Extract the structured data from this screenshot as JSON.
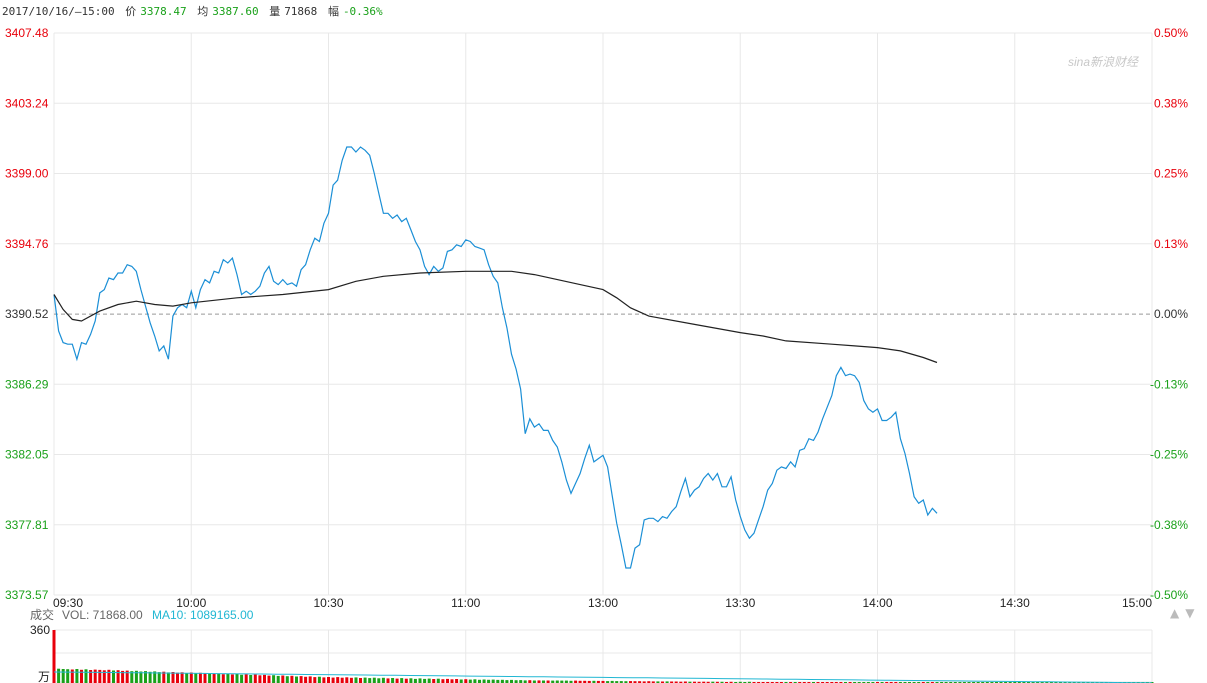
{
  "header": {
    "datetime": "2017/10/16/—15:00",
    "price_label": "价",
    "price": "3378.47",
    "avg_label": "均",
    "avg": "3387.60",
    "vol_label": "量",
    "vol": "71868",
    "chg_label": "幅",
    "chg": "-0.36%"
  },
  "watermark": "sina新浪财经",
  "nav": {
    "up": "▲",
    "down": "▼"
  },
  "volume_header": {
    "title": "成交",
    "vol_text": "VOL: 71868.00",
    "ma_text": "MA10: 1089165.00",
    "max_tick": "360",
    "unit": "万"
  },
  "colors": {
    "up": "#e8000b",
    "down": "#1aa11a",
    "price_line": "#1b8fd6",
    "avg_line": "#222222",
    "ma_line": "#21b7d3",
    "grid": "#e8e8e8",
    "baseline": "#999999"
  },
  "chart_data": {
    "type": "line",
    "price_ticks": [
      "3407.48",
      "3403.24",
      "3399.00",
      "3394.76",
      "3390.52",
      "3386.29",
      "3382.05",
      "3377.81",
      "3373.57"
    ],
    "pct_ticks": [
      "0.50%",
      "0.38%",
      "0.25%",
      "0.13%",
      "0.00%",
      "-0.13%",
      "-0.25%",
      "-0.38%",
      "-0.50%"
    ],
    "time_ticks": [
      "09:30",
      "10:00",
      "10:30",
      "11:00",
      "13:00",
      "13:30",
      "14:00",
      "14:30",
      "15:00"
    ],
    "ylim": [
      3373.57,
      3407.48
    ],
    "prev_close": 3390.52,
    "x_minutes": [
      0,
      240
    ],
    "series": [
      {
        "key": "price",
        "points": [
          [
            0,
            3391.7
          ],
          [
            1,
            3389.5
          ],
          [
            2,
            3388.8
          ],
          [
            3,
            3388.7
          ],
          [
            4,
            3388.7
          ],
          [
            5,
            3387.8
          ],
          [
            6,
            3388.8
          ],
          [
            7,
            3388.7
          ],
          [
            8,
            3389.3
          ],
          [
            9,
            3390.1
          ],
          [
            10,
            3391.8
          ],
          [
            11,
            3392.0
          ],
          [
            12,
            3392.7
          ],
          [
            13,
            3392.6
          ],
          [
            14,
            3393.0
          ],
          [
            15,
            3393.0
          ],
          [
            16,
            3393.5
          ],
          [
            17,
            3393.4
          ],
          [
            18,
            3393.1
          ],
          [
            19,
            3392.0
          ],
          [
            20,
            3391.0
          ],
          [
            21,
            3390.0
          ],
          [
            22,
            3389.2
          ],
          [
            23,
            3388.3
          ],
          [
            24,
            3388.6
          ],
          [
            25,
            3387.8
          ],
          [
            26,
            3390.4
          ],
          [
            27,
            3390.9
          ],
          [
            28,
            3391.1
          ],
          [
            29,
            3390.9
          ],
          [
            30,
            3391.9
          ],
          [
            31,
            3390.9
          ],
          [
            32,
            3392.0
          ],
          [
            33,
            3392.6
          ],
          [
            34,
            3392.4
          ],
          [
            35,
            3393.1
          ],
          [
            36,
            3393.0
          ],
          [
            37,
            3393.8
          ],
          [
            38,
            3393.6
          ],
          [
            39,
            3393.9
          ],
          [
            40,
            3392.9
          ],
          [
            41,
            3391.7
          ],
          [
            42,
            3391.9
          ],
          [
            43,
            3391.7
          ],
          [
            44,
            3391.9
          ],
          [
            45,
            3392.2
          ],
          [
            46,
            3393.0
          ],
          [
            47,
            3393.4
          ],
          [
            48,
            3392.5
          ],
          [
            49,
            3392.3
          ],
          [
            50,
            3392.6
          ],
          [
            51,
            3392.3
          ],
          [
            52,
            3392.4
          ],
          [
            53,
            3392.2
          ],
          [
            54,
            3393.2
          ],
          [
            55,
            3393.5
          ],
          [
            56,
            3394.4
          ],
          [
            57,
            3395.1
          ],
          [
            58,
            3394.9
          ],
          [
            59,
            3396.0
          ],
          [
            60,
            3396.6
          ],
          [
            61,
            3398.3
          ],
          [
            62,
            3398.6
          ],
          [
            63,
            3399.8
          ],
          [
            64,
            3400.6
          ],
          [
            65,
            3400.6
          ],
          [
            66,
            3400.3
          ],
          [
            67,
            3400.6
          ],
          [
            68,
            3400.4
          ],
          [
            69,
            3400.1
          ],
          [
            70,
            3399.0
          ],
          [
            71,
            3397.8
          ],
          [
            72,
            3396.6
          ],
          [
            73,
            3396.6
          ],
          [
            74,
            3396.3
          ],
          [
            75,
            3396.5
          ],
          [
            76,
            3396.1
          ],
          [
            77,
            3396.3
          ],
          [
            78,
            3395.6
          ],
          [
            79,
            3394.9
          ],
          [
            80,
            3394.4
          ],
          [
            81,
            3393.4
          ],
          [
            82,
            3392.9
          ],
          [
            83,
            3393.4
          ],
          [
            84,
            3393.1
          ],
          [
            85,
            3393.3
          ],
          [
            86,
            3394.3
          ],
          [
            87,
            3394.4
          ],
          [
            88,
            3394.7
          ],
          [
            89,
            3394.6
          ],
          [
            90,
            3395.0
          ],
          [
            91,
            3394.9
          ],
          [
            92,
            3394.6
          ],
          [
            93,
            3394.5
          ],
          [
            94,
            3394.4
          ],
          [
            95,
            3393.5
          ],
          [
            96,
            3392.8
          ],
          [
            97,
            3392.4
          ],
          [
            98,
            3390.9
          ],
          [
            99,
            3389.7
          ],
          [
            100,
            3388.1
          ],
          [
            101,
            3387.2
          ],
          [
            102,
            3386.0
          ],
          [
            103,
            3383.3
          ],
          [
            104,
            3384.2
          ],
          [
            105,
            3383.7
          ],
          [
            106,
            3383.9
          ],
          [
            107,
            3383.5
          ],
          [
            108,
            3383.5
          ],
          [
            109,
            3382.9
          ],
          [
            110,
            3382.5
          ],
          [
            111,
            3381.6
          ],
          [
            112,
            3380.5
          ],
          [
            113,
            3379.7
          ],
          [
            114,
            3380.3
          ],
          [
            115,
            3380.9
          ],
          [
            116,
            3381.8
          ],
          [
            117,
            3382.6
          ],
          [
            118,
            3381.6
          ],
          [
            119,
            3381.8
          ],
          [
            120,
            3382.0
          ],
          [
            121,
            3381.3
          ],
          [
            122,
            3379.6
          ],
          [
            123,
            3377.9
          ],
          [
            124,
            3376.6
          ],
          [
            125,
            3375.2
          ],
          [
            126,
            3375.2
          ],
          [
            127,
            3376.4
          ],
          [
            128,
            3376.6
          ],
          [
            129,
            3378.1
          ],
          [
            130,
            3378.2
          ],
          [
            131,
            3378.2
          ],
          [
            132,
            3378.0
          ],
          [
            133,
            3378.3
          ],
          [
            134,
            3378.2
          ],
          [
            135,
            3378.6
          ],
          [
            136,
            3378.9
          ],
          [
            137,
            3379.8
          ],
          [
            138,
            3380.6
          ],
          [
            139,
            3379.5
          ],
          [
            140,
            3379.9
          ],
          [
            141,
            3380.1
          ],
          [
            142,
            3380.6
          ],
          [
            143,
            3380.9
          ],
          [
            144,
            3380.5
          ],
          [
            145,
            3380.9
          ],
          [
            146,
            3380.1
          ],
          [
            147,
            3380.1
          ],
          [
            148,
            3380.7
          ],
          [
            149,
            3379.3
          ],
          [
            150,
            3378.3
          ],
          [
            151,
            3377.5
          ],
          [
            152,
            3377.0
          ],
          [
            153,
            3377.3
          ],
          [
            154,
            3378.1
          ],
          [
            155,
            3378.9
          ],
          [
            156,
            3379.9
          ],
          [
            157,
            3380.3
          ],
          [
            158,
            3381.1
          ],
          [
            159,
            3381.3
          ],
          [
            160,
            3381.2
          ],
          [
            161,
            3381.6
          ],
          [
            162,
            3381.3
          ],
          [
            163,
            3382.3
          ],
          [
            164,
            3382.4
          ],
          [
            165,
            3383.0
          ],
          [
            166,
            3382.9
          ],
          [
            167,
            3383.4
          ],
          [
            168,
            3384.2
          ],
          [
            169,
            3384.9
          ],
          [
            170,
            3385.6
          ],
          [
            171,
            3386.8
          ],
          [
            172,
            3387.3
          ],
          [
            173,
            3386.8
          ],
          [
            174,
            3386.9
          ],
          [
            175,
            3386.8
          ],
          [
            176,
            3386.4
          ],
          [
            177,
            3385.3
          ],
          [
            178,
            3384.8
          ],
          [
            179,
            3384.6
          ],
          [
            180,
            3384.8
          ],
          [
            181,
            3384.1
          ],
          [
            182,
            3384.1
          ],
          [
            183,
            3384.3
          ],
          [
            184,
            3384.6
          ],
          [
            185,
            3383.0
          ],
          [
            186,
            3382.1
          ],
          [
            187,
            3380.9
          ],
          [
            188,
            3379.5
          ],
          [
            189,
            3379.1
          ],
          [
            190,
            3379.3
          ],
          [
            191,
            3378.4
          ],
          [
            192,
            3378.8
          ],
          [
            193,
            3378.5
          ]
        ]
      },
      {
        "key": "avg",
        "points": [
          [
            0,
            3391.7
          ],
          [
            2,
            3390.8
          ],
          [
            4,
            3390.2
          ],
          [
            6,
            3390.1
          ],
          [
            10,
            3390.7
          ],
          [
            14,
            3391.1
          ],
          [
            18,
            3391.3
          ],
          [
            22,
            3391.1
          ],
          [
            26,
            3391.0
          ],
          [
            30,
            3391.2
          ],
          [
            40,
            3391.5
          ],
          [
            50,
            3391.7
          ],
          [
            60,
            3392.0
          ],
          [
            66,
            3392.5
          ],
          [
            72,
            3392.8
          ],
          [
            80,
            3393.0
          ],
          [
            90,
            3393.1
          ],
          [
            100,
            3393.1
          ],
          [
            105,
            3392.9
          ],
          [
            110,
            3392.6
          ],
          [
            115,
            3392.3
          ],
          [
            120,
            3392.0
          ],
          [
            123,
            3391.5
          ],
          [
            126,
            3390.9
          ],
          [
            130,
            3390.4
          ],
          [
            140,
            3389.9
          ],
          [
            150,
            3389.4
          ],
          [
            155,
            3389.2
          ],
          [
            160,
            3388.9
          ],
          [
            170,
            3388.7
          ],
          [
            175,
            3388.6
          ],
          [
            180,
            3388.5
          ],
          [
            185,
            3388.3
          ],
          [
            190,
            3387.9
          ],
          [
            193,
            3387.6
          ]
        ]
      }
    ],
    "volume": {
      "max": 360,
      "bars": [
        360,
        97,
        95,
        94,
        92,
        95,
        90,
        93,
        88,
        91,
        89,
        86,
        90,
        85,
        87,
        82,
        84,
        80,
        83,
        78,
        81,
        76,
        79,
        74,
        77,
        72,
        75,
        70,
        73,
        68,
        71,
        66,
        69,
        64,
        67,
        62,
        65,
        60,
        63,
        58,
        61,
        56,
        59,
        54,
        57,
        52,
        55,
        50,
        53,
        48,
        51,
        46,
        49,
        44,
        47,
        42,
        45,
        40,
        43,
        38,
        41,
        37,
        40,
        36,
        39,
        35,
        38,
        34,
        37,
        33,
        36,
        32,
        35,
        31,
        34,
        30,
        33,
        29,
        32,
        28,
        31,
        28,
        30,
        27,
        29,
        26,
        28,
        25,
        27,
        24,
        26,
        23,
        25,
        22,
        24,
        22,
        23,
        21,
        22,
        20,
        21,
        19,
        20,
        18,
        19,
        17,
        18,
        17,
        17,
        16,
        17,
        16,
        16,
        15,
        16,
        15,
        15,
        14,
        15,
        14,
        14,
        13,
        14,
        13,
        13,
        12,
        13,
        12,
        12,
        11,
        12,
        11,
        11,
        10,
        11,
        10,
        10,
        9,
        10,
        9,
        9,
        8,
        9,
        8,
        9,
        8,
        8,
        7,
        8,
        7,
        8,
        7,
        8,
        7,
        7,
        6,
        7,
        6,
        7,
        6,
        7,
        6,
        6,
        5,
        6,
        5,
        6,
        5,
        6,
        5,
        6,
        5,
        5,
        4,
        5,
        4,
        5,
        4,
        5,
        4,
        5,
        4,
        5,
        4,
        5,
        4,
        5,
        4,
        5,
        4,
        5,
        4,
        5,
        4,
        5,
        4,
        5,
        4,
        5,
        4,
        5,
        4,
        5,
        4,
        5,
        4,
        5,
        4,
        5,
        4,
        5,
        4,
        5,
        4,
        5,
        4,
        5,
        4,
        5,
        4,
        5,
        4,
        5,
        4,
        5,
        4,
        5,
        4,
        5,
        4,
        5,
        4,
        5,
        4,
        5,
        4,
        5,
        4,
        5,
        4,
        5,
        4,
        5,
        4,
        5,
        4,
        5,
        4,
        5
      ],
      "ma": [
        75,
        74,
        73,
        72,
        71,
        70,
        69,
        68,
        67,
        66,
        65,
        64,
        63,
        62,
        61,
        60,
        59,
        58,
        57,
        56,
        55,
        54,
        53,
        52,
        51,
        50,
        49,
        48,
        47,
        46,
        45,
        44,
        43,
        42,
        41,
        40,
        39,
        38,
        37,
        36,
        35,
        34,
        33,
        32,
        31,
        30,
        29,
        28,
        27,
        26,
        25,
        24,
        23,
        22,
        21,
        20,
        19,
        18,
        17,
        16,
        15,
        14,
        13,
        12,
        11,
        10,
        9,
        8,
        7,
        6,
        5,
        4,
        3,
        2,
        1
      ]
    }
  }
}
